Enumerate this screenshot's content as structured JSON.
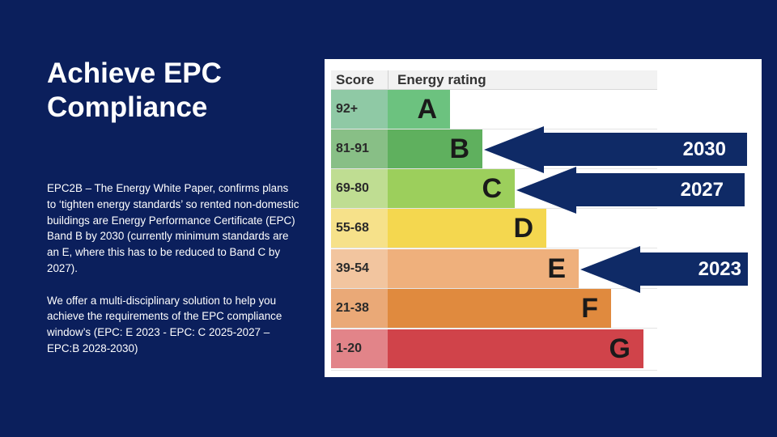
{
  "slide": {
    "title": "Achieve EPC Compliance",
    "paragraphs": [
      "EPC2B – The Energy White Paper, confirms plans to ‘tighten energy standards’ so rented non-domestic buildings are Energy Performance Certificate (EPC) Band B by 2030 (currently minimum standards are an E, where this has to be reduced to Band C by 2027).",
      "We offer a multi-disciplinary solution to help you achieve the requirements of the EPC compliance window’s (EPC: E 2023 - EPC: C 2025-2027 – EPC:B 2028-2030)"
    ]
  },
  "epc": {
    "header": {
      "score": "Score",
      "rating": "Energy rating"
    },
    "bands": [
      {
        "score": "92+",
        "letter": "A",
        "bar_color": "#6cc27f",
        "score_color": "#8fc9a5"
      },
      {
        "score": "81-91",
        "letter": "B",
        "bar_color": "#5fb05e",
        "score_color": "#88bf86"
      },
      {
        "score": "69-80",
        "letter": "C",
        "bar_color": "#9ccf5c",
        "score_color": "#bfdd92"
      },
      {
        "score": "55-68",
        "letter": "D",
        "bar_color": "#f4d74f",
        "score_color": "#f6e18a"
      },
      {
        "score": "39-54",
        "letter": "E",
        "bar_color": "#efb07c",
        "score_color": "#f2c59f"
      },
      {
        "score": "21-38",
        "letter": "F",
        "bar_color": "#e08a3e",
        "score_color": "#eaa977"
      },
      {
        "score": "1-20",
        "letter": "G",
        "bar_color": "#d0434a",
        "score_color": "#e28489"
      }
    ],
    "targets": [
      {
        "year": "2030",
        "band": "B"
      },
      {
        "year": "2027",
        "band": "C"
      },
      {
        "year": "2023",
        "band": "E"
      }
    ],
    "arrow_color": "#0f2a66"
  }
}
